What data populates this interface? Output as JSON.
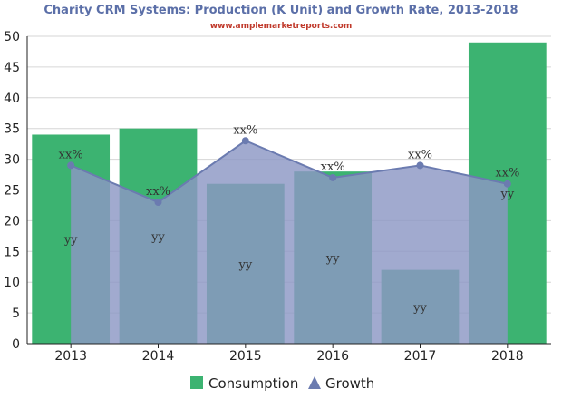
{
  "chart_data": {
    "type": "bar",
    "title": "Charity CRM Systems: Production (K Unit) and Growth Rate, 2013-2018",
    "subtitle": "www.amplemarketreports.com",
    "categories": [
      "2013",
      "2014",
      "2015",
      "2016",
      "2017",
      "2018"
    ],
    "ylim": [
      0,
      50
    ],
    "yticks": [
      0,
      5,
      10,
      15,
      20,
      25,
      30,
      35,
      40,
      45,
      50
    ],
    "grid": true,
    "legend_position": "bottom",
    "series": [
      {
        "name": "Consumption",
        "type": "bar",
        "values": [
          34,
          35,
          26,
          28,
          12,
          49
        ],
        "labels": [
          "yy",
          "yy",
          "yy",
          "yy",
          "yy",
          "yy"
        ],
        "color": "#3cb371"
      },
      {
        "name": "Growth",
        "type": "area",
        "values": [
          29,
          23,
          33,
          27,
          29,
          26
        ],
        "labels": [
          "xx%",
          "xx%",
          "xx%",
          "xx%",
          "xx%",
          "xx%"
        ],
        "color": "#6b7bb0",
        "fill": "#8c97c5"
      }
    ]
  }
}
